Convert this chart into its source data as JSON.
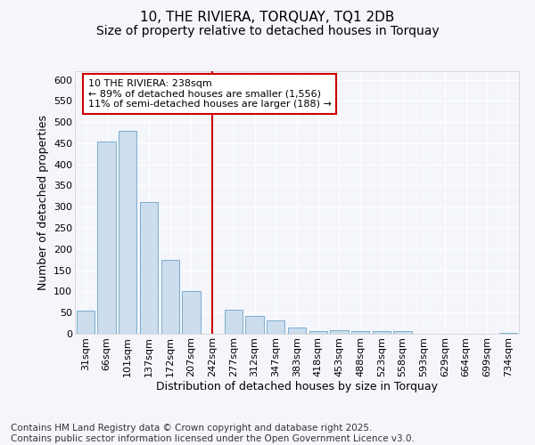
{
  "title": "10, THE RIVIERA, TORQUAY, TQ1 2DB",
  "subtitle": "Size of property relative to detached houses in Torquay",
  "xlabel": "Distribution of detached houses by size in Torquay",
  "ylabel": "Number of detached properties",
  "bar_color": "#ccdded",
  "bar_edge_color": "#7aadcc",
  "background_color": "#f4f6fb",
  "grid_color": "#ffffff",
  "categories": [
    "31sqm",
    "66sqm",
    "101sqm",
    "137sqm",
    "172sqm",
    "207sqm",
    "242sqm",
    "277sqm",
    "312sqm",
    "347sqm",
    "383sqm",
    "418sqm",
    "453sqm",
    "488sqm",
    "523sqm",
    "558sqm",
    "593sqm",
    "629sqm",
    "664sqm",
    "699sqm",
    "734sqm"
  ],
  "values": [
    55,
    455,
    480,
    312,
    175,
    100,
    0,
    57,
    42,
    31,
    14,
    7,
    8,
    7,
    6,
    6,
    1,
    0,
    0,
    0,
    2
  ],
  "vline_index": 6,
  "vline_color": "#cc0000",
  "annotation_text": "10 THE RIVIERA: 238sqm\n← 89% of detached houses are smaller (1,556)\n11% of semi-detached houses are larger (188) →",
  "annotation_box_facecolor": "#ffffff",
  "annotation_box_edgecolor": "#cc0000",
  "ylim": [
    0,
    620
  ],
  "yticks": [
    0,
    50,
    100,
    150,
    200,
    250,
    300,
    350,
    400,
    450,
    500,
    550,
    600
  ],
  "footer": "Contains HM Land Registry data © Crown copyright and database right 2025.\nContains public sector information licensed under the Open Government Licence v3.0.",
  "title_fontsize": 11,
  "subtitle_fontsize": 10,
  "axis_label_fontsize": 9,
  "tick_fontsize": 8,
  "annotation_fontsize": 8,
  "footer_fontsize": 7.5
}
